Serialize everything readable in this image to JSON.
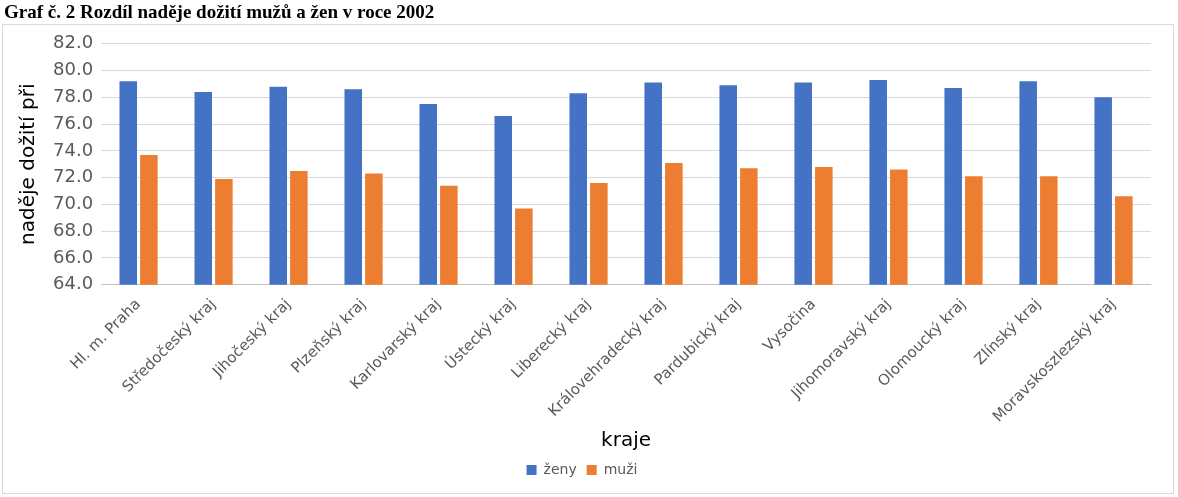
{
  "chart_data": {
    "type": "bar",
    "title": "Graf č. 2 Rozdíl naděje dožití mužů a žen v roce 2002",
    "xlabel": "kraje",
    "ylabel": "naděje dožití při",
    "categories": [
      "Hl. m. Praha",
      "Středočeský kraj",
      "Jihočeský kraj",
      "Plzeňský kraj",
      "Karlovarský kraj",
      "Ústecký kraj",
      "Liberecký kraj",
      "Královehradecký kraj",
      "Pardubický kraj",
      "Vysočina",
      "Jihomoravský kraj",
      "Olomoucký kraj",
      "Zlínský kraj",
      "Moravskoszlezský kraj"
    ],
    "series": [
      {
        "name": "ženy",
        "color": "#4472c4",
        "values": [
          79.2,
          78.4,
          78.8,
          78.6,
          77.5,
          76.6,
          78.3,
          79.1,
          78.9,
          79.1,
          79.3,
          78.7,
          79.2,
          78.0
        ]
      },
      {
        "name": "muži",
        "color": "#ed7d31",
        "values": [
          73.7,
          71.9,
          72.5,
          72.3,
          71.4,
          69.7,
          71.6,
          73.1,
          72.7,
          72.8,
          72.6,
          72.1,
          72.1,
          70.6
        ]
      }
    ],
    "ylim": [
      64,
      82
    ],
    "yticks": [
      {
        "value": 64,
        "label": "64.0"
      },
      {
        "value": 66,
        "label": "66.0"
      },
      {
        "value": 68,
        "label": "68.0"
      },
      {
        "value": 70,
        "label": "70.0"
      },
      {
        "value": 72,
        "label": "72.0"
      },
      {
        "value": 74,
        "label": "74.0"
      },
      {
        "value": 76,
        "label": "76.0"
      },
      {
        "value": 78,
        "label": "78.0"
      },
      {
        "value": 80,
        "label": "80.0"
      },
      {
        "value": 82,
        "label": "82.0"
      }
    ],
    "grid": "y",
    "legend": "bottom"
  }
}
